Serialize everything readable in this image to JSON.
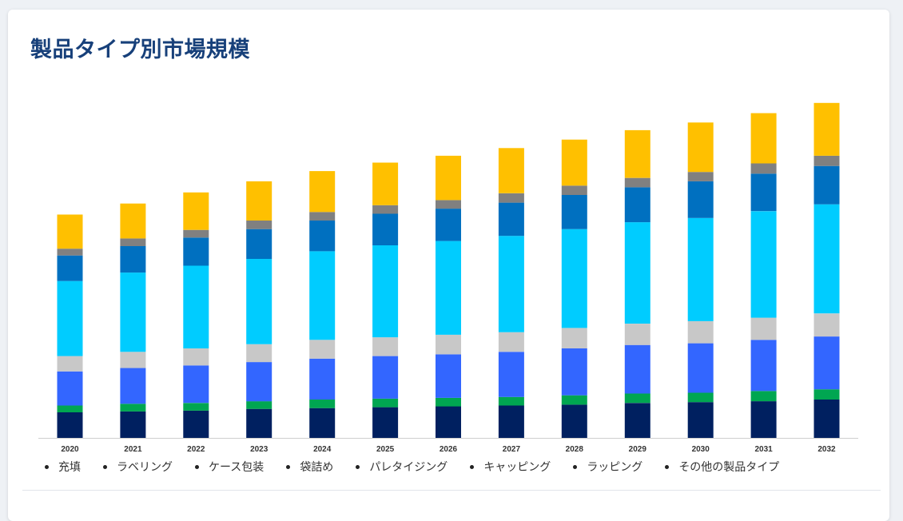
{
  "page": {
    "title": "製品タイプ別市場規模"
  },
  "chart_data": {
    "type": "bar",
    "stacked": true,
    "categories": [
      "2020",
      "2021",
      "2022",
      "2023",
      "2024",
      "2025",
      "2026",
      "2027",
      "2028",
      "2029",
      "2030",
      "2031",
      "2032"
    ],
    "series": [
      {
        "name": "充填",
        "color": "#002060",
        "values": [
          30,
          31,
          32,
          34,
          35,
          36,
          37,
          38,
          39,
          41,
          42,
          43,
          45
        ]
      },
      {
        "name": "ラベリング",
        "color": "#00a651",
        "values": [
          8,
          9,
          9,
          9,
          10,
          10,
          10,
          10,
          11,
          11,
          11,
          12,
          12
        ]
      },
      {
        "name": "ケース包装",
        "color": "#3366ff",
        "values": [
          40,
          42,
          44,
          46,
          48,
          50,
          51,
          53,
          55,
          57,
          58,
          60,
          62
        ]
      },
      {
        "name": "袋詰め",
        "color": "#c8c8c8",
        "values": [
          18,
          19,
          20,
          21,
          22,
          22,
          23,
          23,
          24,
          25,
          26,
          26,
          27
        ]
      },
      {
        "name": "パレタイジング",
        "color": "#00ccff",
        "values": [
          88,
          93,
          97,
          100,
          104,
          108,
          110,
          113,
          116,
          119,
          121,
          125,
          128
        ]
      },
      {
        "name": "キャッピング",
        "color": "#0070c0",
        "values": [
          30,
          31,
          33,
          35,
          36,
          37,
          38,
          39,
          40,
          41,
          43,
          44,
          45
        ]
      },
      {
        "name": "ラッピング",
        "color": "#808080",
        "values": [
          8,
          9,
          9,
          10,
          10,
          10,
          10,
          11,
          11,
          11,
          11,
          12,
          12
        ]
      },
      {
        "name": "その他の製品タイプ",
        "color": "#ffc000",
        "values": [
          40,
          41,
          44,
          46,
          48,
          50,
          52,
          53,
          54,
          56,
          58,
          59,
          62
        ]
      }
    ],
    "ylim": [
      0,
      420
    ],
    "xlabel": "",
    "ylabel": "",
    "grid": false,
    "legend": "bottom"
  }
}
